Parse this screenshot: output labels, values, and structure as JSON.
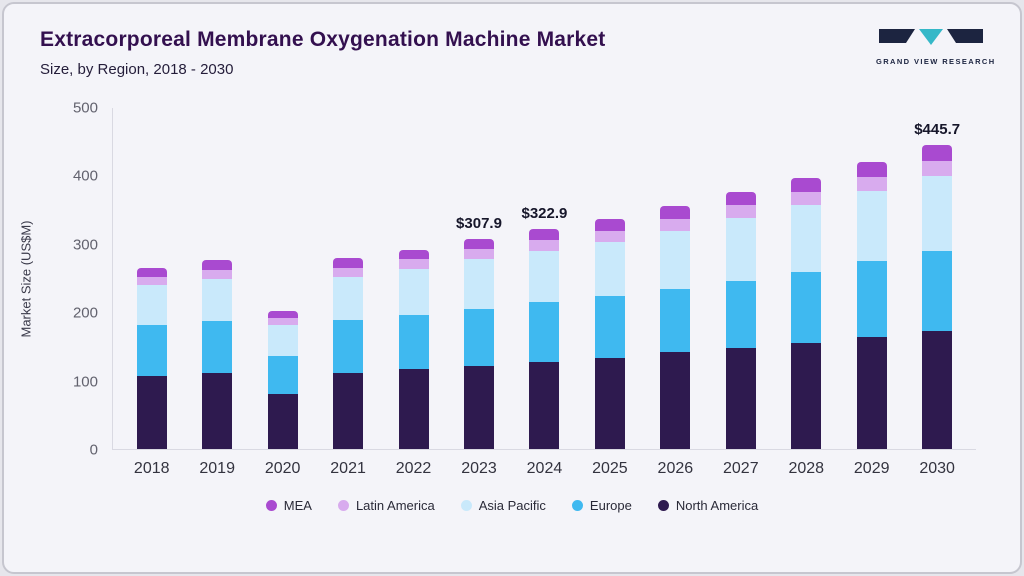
{
  "header": {
    "title": "Extracorporeal Membrane Oxygenation Machine Market",
    "subtitle": "Size, by Region, 2018 - 2030",
    "logo_text": "GRAND VIEW RESEARCH"
  },
  "colors": {
    "card_background": "#f4f4f9",
    "card_border": "#c6c6cf",
    "title_text": "#33104f",
    "logo_navy": "#1c2440",
    "logo_teal": "#35b8c8"
  },
  "chart_data": {
    "type": "bar",
    "stacked": true,
    "title": "Extracorporeal Membrane Oxygenation Machine Market",
    "subtitle": "Size, by Region, 2018 - 2030",
    "xlabel": "",
    "ylabel": "Market Size (US$M)",
    "ylim": [
      0,
      500
    ],
    "yticks": [
      0,
      100,
      200,
      300,
      400,
      500
    ],
    "grid": false,
    "legend_position": "bottom",
    "categories": [
      "2018",
      "2019",
      "2020",
      "2021",
      "2022",
      "2023",
      "2024",
      "2025",
      "2026",
      "2027",
      "2028",
      "2029",
      "2030"
    ],
    "series": [
      {
        "name": "North America",
        "color": "#2e1a4f",
        "values": [
          107,
          111,
          81,
          111,
          117,
          122,
          128,
          134,
          142,
          148,
          155,
          164,
          173
        ]
      },
      {
        "name": "Europe",
        "color": "#3fb9f0",
        "values": [
          75,
          77,
          56,
          78,
          80,
          83,
          87,
          90,
          93,
          99,
          105,
          111,
          117
        ]
      },
      {
        "name": "Asia Pacific",
        "color": "#c9e9fb",
        "values": [
          58,
          62,
          45,
          63,
          67,
          73,
          76,
          80,
          85,
          92,
          98,
          103,
          110
        ]
      },
      {
        "name": "Latin America",
        "color": "#d8abee",
        "values": [
          12,
          13,
          10,
          14,
          14,
          15,
          16,
          16,
          18,
          19,
          19,
          21,
          23
        ]
      },
      {
        "name": "MEA",
        "color": "#a94ad0",
        "values": [
          13,
          14,
          10,
          14,
          14,
          14.9,
          15.9,
          17,
          18,
          19,
          20,
          22,
          22.7
        ]
      }
    ],
    "totals": [
      265,
      277,
      202,
      280,
      292,
      307.9,
      322.9,
      337,
      356,
      377,
      397,
      421,
      445.7
    ],
    "annotations": [
      {
        "category": "2023",
        "text": "$307.9"
      },
      {
        "category": "2024",
        "text": "$322.9"
      },
      {
        "category": "2030",
        "text": "$445.7"
      }
    ],
    "legend_order": [
      "MEA",
      "Latin America",
      "Asia Pacific",
      "Europe",
      "North America"
    ]
  }
}
